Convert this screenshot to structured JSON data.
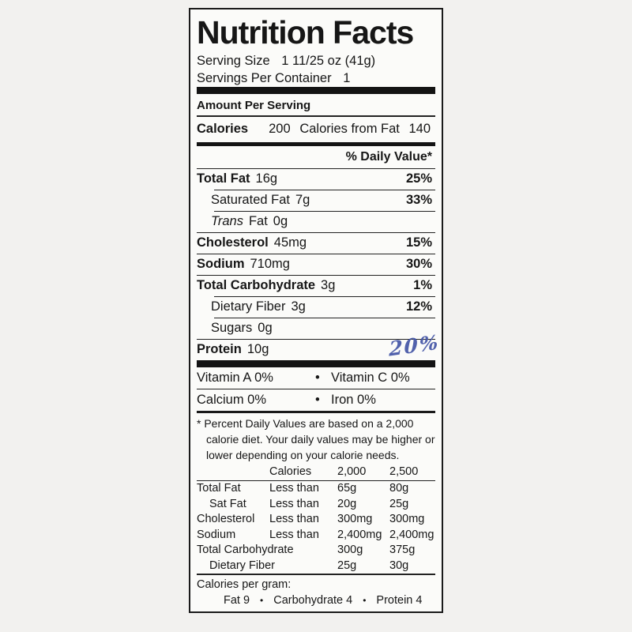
{
  "label": {
    "title": "Nutrition Facts",
    "serving_size": {
      "label": "Serving Size",
      "value": "1 11/25 oz  (41g)"
    },
    "servings_per_container": {
      "label": "Servings Per Container",
      "value": "1"
    },
    "amount_per_serving": "Amount Per Serving",
    "calories_row": {
      "label": "Calories",
      "value": "200",
      "from_fat_label": "Calories from Fat",
      "from_fat_value": "140"
    },
    "daily_value_header": "% Daily Value*",
    "nutrients": [
      {
        "name": "Total Fat",
        "amount": "16g",
        "dv": "25%"
      },
      {
        "name": "Saturated Fat",
        "amount": "7g",
        "dv": "33%"
      },
      {
        "name_italic": "Trans",
        "name_rest": "Fat",
        "amount": "0g",
        "dv": ""
      },
      {
        "name": "Cholesterol",
        "amount": "45mg",
        "dv": "15%"
      },
      {
        "name": "Sodium",
        "amount": "710mg",
        "dv": "30%"
      },
      {
        "name": "Total Carbohydrate",
        "amount": "3g",
        "dv": "1%"
      },
      {
        "name": "Dietary Fiber",
        "amount": "3g",
        "dv": "12%"
      },
      {
        "name": "Sugars",
        "amount": "0g",
        "dv": ""
      },
      {
        "name": "Protein",
        "amount": "10g",
        "dv": ""
      }
    ],
    "handwritten_note": "20%",
    "micronutrients": {
      "separator": "•",
      "rows": [
        {
          "left": "Vitamin A  0%",
          "right": "Vitamin C 0%"
        },
        {
          "left": "Calcium 0%",
          "right": "Iron  0%"
        }
      ]
    },
    "footnote": "* Percent Daily Values are based on a 2,000 calorie diet. Your daily values may be higher or lower depending on your calorie needs.",
    "dv_table": {
      "header": {
        "col2": "Calories",
        "col3": "2,000",
        "col4": "2,500"
      },
      "rows": [
        {
          "name": "Total Fat",
          "qualifier": "Less than",
          "v2000": "65g",
          "v2500": "80g"
        },
        {
          "name": "Sat Fat",
          "qualifier": "Less than",
          "v2000": "20g",
          "v2500": "25g"
        },
        {
          "name": "Cholesterol",
          "qualifier": "Less than",
          "v2000": "300mg",
          "v2500": "300mg"
        },
        {
          "name": "Sodium",
          "qualifier": "Less than",
          "v2000": "2,400mg",
          "v2500": "2,400mg"
        },
        {
          "name": "Total Carbohydrate",
          "qualifier": "",
          "v2000": "300g",
          "v2500": "375g"
        },
        {
          "name": "Dietary Fiber",
          "qualifier": "",
          "v2000": "25g",
          "v2500": "30g"
        }
      ]
    },
    "calories_per_gram": {
      "label": "Calories per gram:",
      "separator": "•",
      "items": [
        "Fat 9",
        "Carbohydrate 4",
        "Protein 4"
      ]
    },
    "colors": {
      "ink": "#161616",
      "handwriting_blue": "#4355a6"
    }
  }
}
